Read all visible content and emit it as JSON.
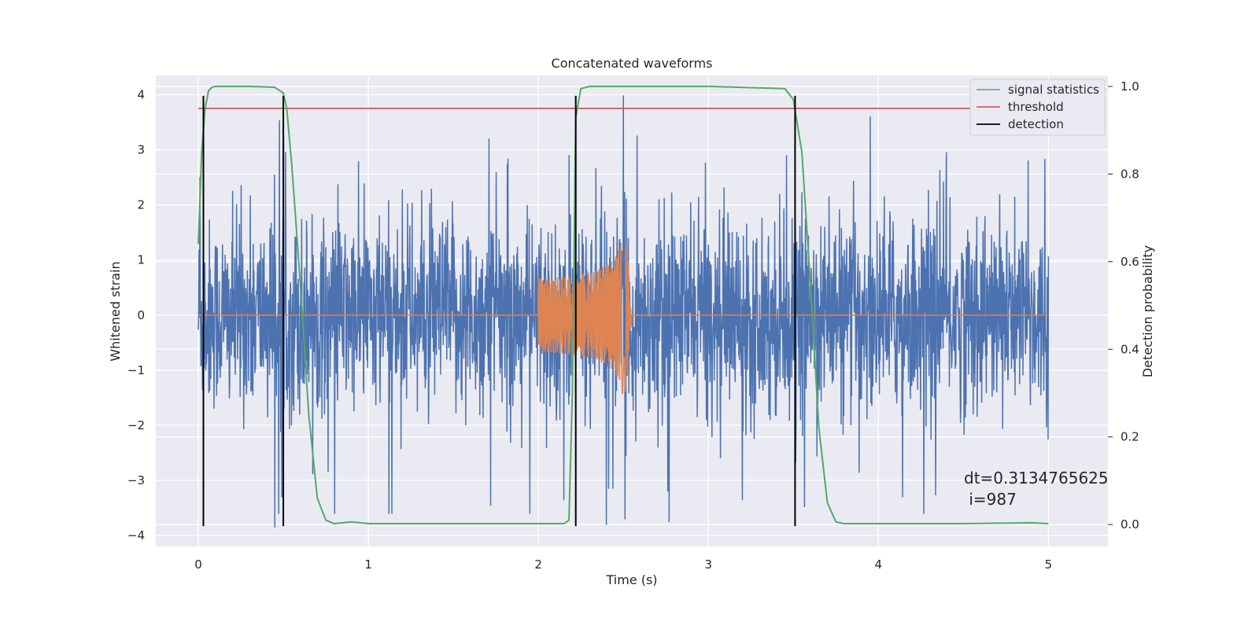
{
  "chart_data": {
    "type": "line",
    "title": "Concatenated waveforms",
    "xlabel": "Time (s)",
    "ylabel": "Whitened strain",
    "ylabel_right": "Detection probability",
    "xlim": [
      -0.25,
      5.35
    ],
    "ylim": [
      -4.2,
      4.35
    ],
    "ylim_right": [
      -0.05,
      1.025
    ],
    "xticks": [
      0,
      1,
      2,
      3,
      4,
      5
    ],
    "xtick_labels": [
      "0",
      "1",
      "2",
      "3",
      "4",
      "5"
    ],
    "yticks": [
      -4,
      -3,
      -2,
      -1,
      0,
      1,
      2,
      3,
      4
    ],
    "ytick_labels": [
      "−4",
      "−3",
      "−2",
      "−1",
      "0",
      "1",
      "2",
      "3",
      "4"
    ],
    "yticks_right": [
      0.0,
      0.2,
      0.4,
      0.6,
      0.8,
      1.0
    ],
    "ytick_right_labels": [
      "0.0",
      "0.2",
      "0.4",
      "0.6",
      "0.8",
      "1.0"
    ],
    "grid": true,
    "legend_position": "top-right",
    "series": [
      {
        "name": "signal statistics",
        "color": "#55a868",
        "axis": "right",
        "x": [
          0.0,
          0.02,
          0.04,
          0.06,
          0.08,
          0.1,
          0.3,
          0.45,
          0.5,
          0.52,
          0.55,
          0.6,
          0.65,
          0.7,
          0.75,
          0.8,
          0.9,
          1.0,
          1.5,
          2.0,
          2.15,
          2.18,
          2.2,
          2.22,
          2.25,
          2.3,
          2.4,
          3.0,
          3.45,
          3.5,
          3.55,
          3.6,
          3.65,
          3.7,
          3.75,
          3.8,
          4.0,
          4.5,
          4.9,
          5.0
        ],
        "y": [
          0.64,
          0.85,
          0.95,
          0.99,
          0.998,
          1.0,
          1.0,
          0.998,
          0.985,
          0.95,
          0.82,
          0.55,
          0.25,
          0.06,
          0.01,
          0.002,
          0.006,
          0.002,
          0.002,
          0.002,
          0.002,
          0.01,
          0.3,
          0.93,
          0.995,
          1.0,
          1.0,
          1.0,
          0.995,
          0.97,
          0.85,
          0.55,
          0.22,
          0.05,
          0.006,
          0.002,
          0.002,
          0.002,
          0.004,
          0.002
        ]
      },
      {
        "name": "threshold",
        "color": "#c44e52",
        "axis": "right",
        "x": [
          0.0,
          5.0
        ],
        "y": [
          0.95,
          0.95
        ]
      },
      {
        "name": "detection",
        "color": "#000000",
        "axis": "left",
        "vlines_x": [
          0.03,
          0.5,
          2.22,
          3.51
        ],
        "ymin": -3.83,
        "ymax": 3.98
      },
      {
        "color": "#4c72b0",
        "axis": "left",
        "x_range": [
          0.0,
          5.0
        ],
        "dense_noise": true,
        "spikes": [
          [
            0.01,
            2.5
          ],
          [
            0.45,
            -3.85
          ],
          [
            0.49,
            -3.3
          ],
          [
            1.71,
            3.2
          ],
          [
            1.72,
            -3.45
          ],
          [
            2.15,
            -3.35
          ],
          [
            2.18,
            2.9
          ],
          [
            2.4,
            -3.8
          ],
          [
            2.5,
            3.98
          ],
          [
            2.51,
            -3.7
          ],
          [
            2.58,
            3.25
          ],
          [
            2.77,
            -3.75
          ],
          [
            3.2,
            -3.35
          ],
          [
            4.4,
            2.95
          ],
          [
            4.88,
            2.8
          ]
        ]
      },
      {
        "color": "#dd8452",
        "axis": "left",
        "chirp_x_range": [
          2.0,
          2.55
        ],
        "chirp_peak": 2.35
      }
    ],
    "annotations": [
      "dt=0.3134765625",
      " i=987"
    ]
  }
}
